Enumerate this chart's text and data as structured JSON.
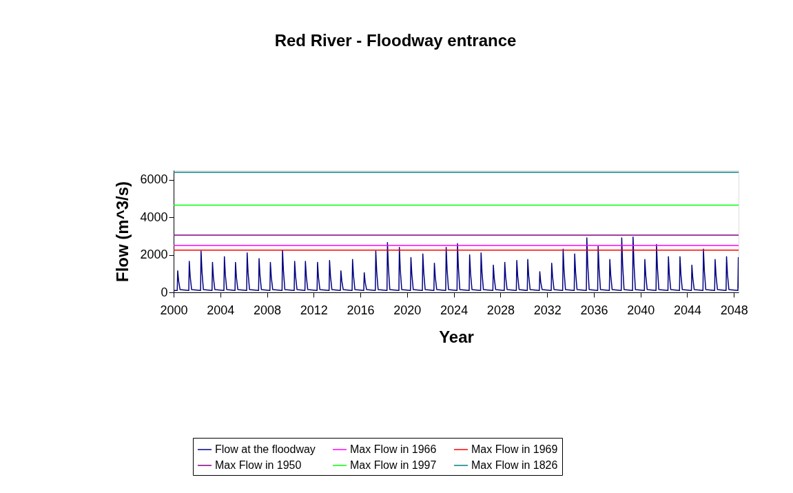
{
  "chart_data": {
    "type": "line",
    "title": "Red River -  Floodway entrance",
    "xlabel": "Year",
    "ylabel": "Flow  (m^3/s)",
    "xlim": [
      2000,
      2048.4
    ],
    "xticks": [
      2000,
      2004,
      2008,
      2012,
      2016,
      2020,
      2024,
      2028,
      2032,
      2036,
      2040,
      2044,
      2048
    ],
    "ylim": [
      0,
      6500
    ],
    "yticks": [
      0,
      2000,
      4000,
      6000
    ],
    "grid": false,
    "legend": "bottom",
    "marker": "none",
    "line_style": "solid",
    "series": [
      {
        "name": "Flow at the floodway",
        "color": "#000080",
        "x": [
          2000.0,
          2000.31,
          2000.35,
          2000.43,
          2000.55,
          2001.3,
          2001.34,
          2001.42,
          2001.54,
          2002.31,
          2002.35,
          2002.43,
          2002.55,
          2003.29,
          2003.33,
          2003.41,
          2003.53,
          2004.31,
          2004.35,
          2004.43,
          2004.55,
          2005.26,
          2005.3,
          2005.38,
          2005.5,
          2006.26,
          2006.3,
          2006.38,
          2006.5,
          2007.28,
          2007.32,
          2007.4,
          2007.52,
          2008.25,
          2008.29,
          2008.37,
          2008.49,
          2009.29,
          2009.33,
          2009.41,
          2009.53,
          2010.33,
          2010.37,
          2010.45,
          2010.57,
          2011.25,
          2011.29,
          2011.37,
          2011.49,
          2012.29,
          2012.33,
          2012.41,
          2012.53,
          2013.32,
          2013.36,
          2013.44,
          2013.56,
          2014.29,
          2014.33,
          2014.41,
          2014.53,
          2015.29,
          2015.33,
          2015.41,
          2015.53,
          2016.29,
          2016.33,
          2016.41,
          2016.53,
          2017.28,
          2017.32,
          2017.4,
          2017.52,
          2018.28,
          2018.32,
          2018.4,
          2018.52,
          2019.3,
          2019.34,
          2019.42,
          2019.54,
          2020.29,
          2020.33,
          2020.41,
          2020.53,
          2021.31,
          2021.35,
          2021.43,
          2021.55,
          2022.3,
          2022.34,
          2022.42,
          2022.54,
          2023.31,
          2023.35,
          2023.43,
          2023.55,
          2024.28,
          2024.32,
          2024.4,
          2024.52,
          2025.32,
          2025.36,
          2025.44,
          2025.56,
          2026.3,
          2026.34,
          2026.42,
          2026.54,
          2027.35,
          2027.39,
          2027.47,
          2027.59,
          2028.33,
          2028.37,
          2028.45,
          2028.57,
          2029.36,
          2029.4,
          2029.48,
          2029.6,
          2030.3,
          2030.34,
          2030.42,
          2030.54,
          2031.33,
          2031.37,
          2031.45,
          2031.57,
          2032.35,
          2032.39,
          2032.47,
          2032.59,
          2033.33,
          2033.37,
          2033.45,
          2033.57,
          2034.32,
          2034.36,
          2034.44,
          2034.56,
          2035.36,
          2035.4,
          2035.48,
          2035.6,
          2036.33,
          2036.37,
          2036.45,
          2036.57,
          2037.33,
          2037.37,
          2037.45,
          2037.57,
          2038.35,
          2038.39,
          2038.47,
          2038.59,
          2039.32,
          2039.36,
          2039.44,
          2039.56,
          2040.33,
          2040.37,
          2040.45,
          2040.57,
          2041.33,
          2041.37,
          2041.45,
          2041.57,
          2042.35,
          2042.39,
          2042.47,
          2042.59,
          2043.34,
          2043.38,
          2043.46,
          2043.58,
          2044.36,
          2044.4,
          2044.48,
          2044.6,
          2045.35,
          2045.39,
          2045.47,
          2045.59,
          2046.35,
          2046.39,
          2046.47,
          2046.59,
          2047.33,
          2047.37,
          2047.45,
          2047.57,
          2048.34,
          2048.38,
          2048.4
        ],
        "values": [
          100,
          100,
          1150,
          600,
          150,
          100,
          1650,
          850,
          150,
          100,
          2200,
          1100,
          150,
          100,
          1600,
          800,
          150,
          100,
          1900,
          950,
          150,
          100,
          1600,
          800,
          150,
          100,
          2100,
          1050,
          150,
          100,
          1800,
          900,
          150,
          100,
          1600,
          800,
          150,
          100,
          2250,
          1150,
          150,
          100,
          1650,
          850,
          150,
          100,
          1650,
          850,
          150,
          100,
          1600,
          800,
          150,
          100,
          1700,
          850,
          150,
          100,
          1150,
          600,
          150,
          100,
          1750,
          900,
          150,
          100,
          1050,
          550,
          150,
          100,
          2200,
          1100,
          150,
          100,
          2650,
          1350,
          150,
          100,
          2400,
          1200,
          150,
          100,
          1850,
          950,
          150,
          100,
          2050,
          1050,
          150,
          100,
          1550,
          800,
          150,
          100,
          2400,
          1200,
          150,
          100,
          2600,
          1300,
          150,
          100,
          2000,
          1000,
          150,
          100,
          2100,
          1050,
          150,
          100,
          1450,
          750,
          150,
          100,
          1600,
          800,
          150,
          100,
          1700,
          850,
          150,
          100,
          1750,
          900,
          150,
          100,
          1100,
          550,
          150,
          100,
          1550,
          800,
          150,
          100,
          2300,
          1150,
          150,
          100,
          2050,
          1050,
          150,
          100,
          2900,
          1450,
          150,
          100,
          2450,
          1250,
          150,
          100,
          1750,
          900,
          150,
          100,
          2900,
          1450,
          150,
          100,
          2950,
          1500,
          150,
          100,
          1750,
          900,
          150,
          100,
          2550,
          1300,
          150,
          100,
          1900,
          950,
          150,
          100,
          1900,
          950,
          150,
          100,
          1450,
          750,
          150,
          100,
          2300,
          1150,
          150,
          100,
          1750,
          900,
          150,
          100,
          1900,
          950,
          150,
          100,
          1850,
          250
        ]
      },
      {
        "name": "Max Flow in 1966",
        "color": "#ff00ff",
        "x": [
          2000,
          2048.4
        ],
        "values": [
          2500,
          2500
        ]
      },
      {
        "name": "Max Flow in 1969",
        "color": "#ff0000",
        "x": [
          2000,
          2048.4
        ],
        "values": [
          2250,
          2250
        ]
      },
      {
        "name": "Max Flow in 1950",
        "color": "#800080",
        "x": [
          2000,
          2048.4
        ],
        "values": [
          3050,
          3050
        ]
      },
      {
        "name": "Max Flow in 1997",
        "color": "#00ff00",
        "x": [
          2000,
          2048.4
        ],
        "values": [
          4650,
          4650
        ]
      },
      {
        "name": "Max Flow in 1826",
        "color": "#008080",
        "x": [
          2000,
          2048.4
        ],
        "values": [
          6400,
          6400
        ]
      }
    ]
  }
}
